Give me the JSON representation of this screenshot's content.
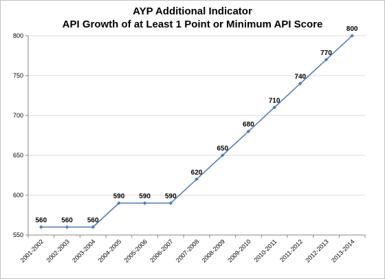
{
  "chart_data": {
    "type": "line",
    "title": "AYP Additional Indicator",
    "subtitle": "API Growth of at Least 1 Point or Minimum API Score",
    "xlabel": "",
    "ylabel": "",
    "categories": [
      "2001-2002",
      "2002-2003",
      "2003-2004",
      "2004-2005",
      "2005-2006",
      "2006-2007",
      "2007-2008",
      "2008-2009",
      "2009-2010",
      "2010-2011",
      "2011-2012",
      "2012-2013",
      "2013-2014"
    ],
    "series": [
      {
        "values": [
          560,
          560,
          560,
          590,
          590,
          590,
          620,
          650,
          680,
          710,
          740,
          770,
          800
        ],
        "color": "#4f81bd"
      }
    ],
    "ylim": [
      550,
      800
    ],
    "yticks": [
      550,
      600,
      650,
      700,
      750,
      800
    ],
    "grid": true,
    "gridlines": "horizontal",
    "data_labels": true,
    "legend": "none"
  }
}
